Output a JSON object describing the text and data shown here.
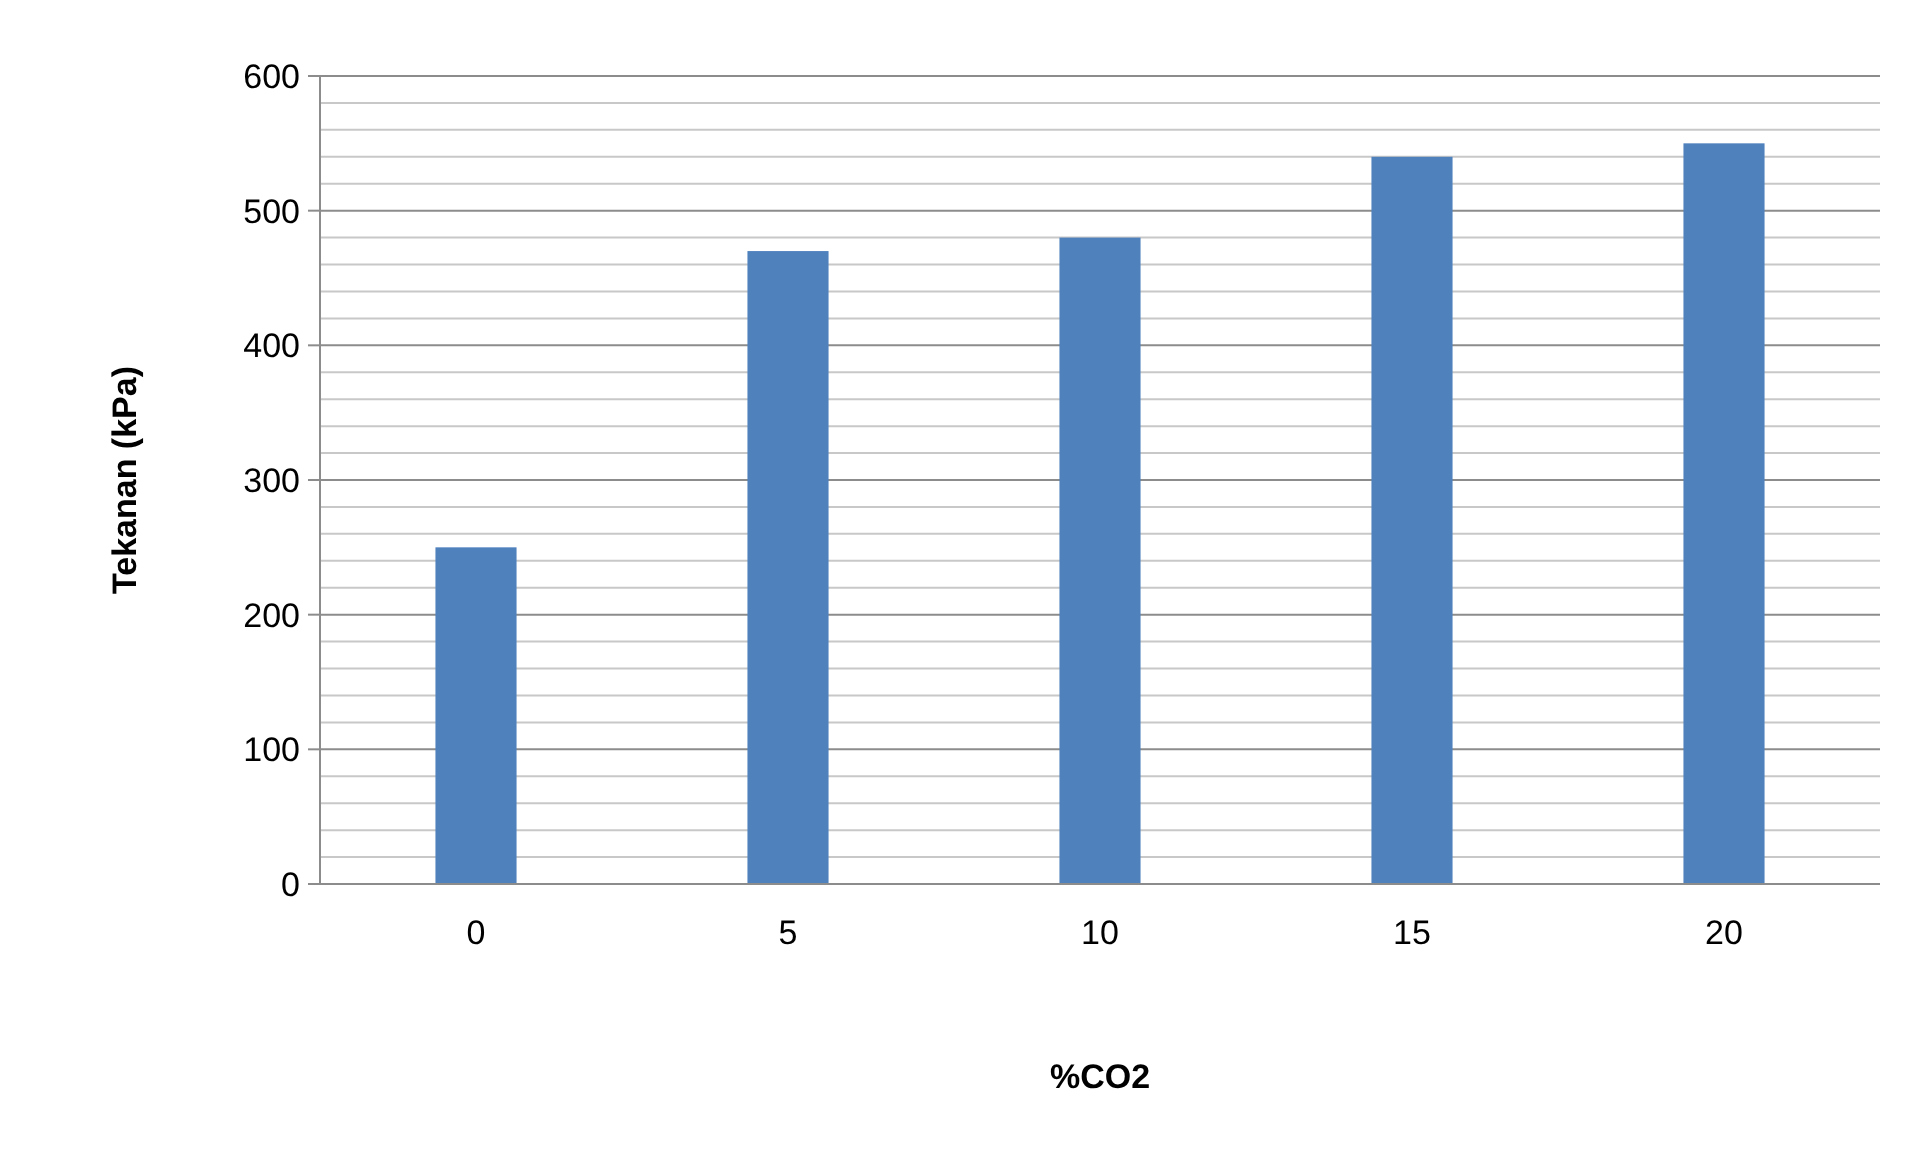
{
  "chart_data": {
    "type": "bar",
    "xlabel": "%CO2",
    "ylabel": "Tekanan (kPa)",
    "categories": [
      "0",
      "5",
      "10",
      "15",
      "20"
    ],
    "values": [
      250,
      470,
      480,
      540,
      550
    ],
    "color": "#4f81bd",
    "ylim": [
      0,
      600
    ],
    "yticks": [
      0,
      {
        "value": 20,
        "label": null
      },
      {
        "value": 40,
        "label": null
      },
      {
        "value": 60,
        "label": null
      },
      {
        "value": 80,
        "label": null
      },
      100,
      {
        "value": 120,
        "label": null
      },
      {
        "value": 140,
        "label": null
      },
      {
        "value": 160,
        "label": null
      },
      {
        "value": 180,
        "label": null
      },
      200,
      {
        "value": 220,
        "label": null
      },
      {
        "value": 240,
        "label": null
      },
      {
        "value": 260,
        "label": null
      },
      {
        "value": 280,
        "label": null
      },
      300,
      {
        "value": 320,
        "label": null
      },
      {
        "value": 340,
        "label": null
      },
      {
        "value": 360,
        "label": null
      },
      {
        "value": 380,
        "label": null
      },
      400,
      {
        "value": 420,
        "label": null
      },
      {
        "value": 440,
        "label": null
      },
      {
        "value": 460,
        "label": null
      },
      {
        "value": 480,
        "label": null
      },
      500,
      {
        "value": 520,
        "label": null
      },
      {
        "value": 540,
        "label": null
      },
      {
        "value": 560,
        "label": null
      },
      {
        "value": 580,
        "label": null
      },
      600
    ],
    "grid": true
  }
}
